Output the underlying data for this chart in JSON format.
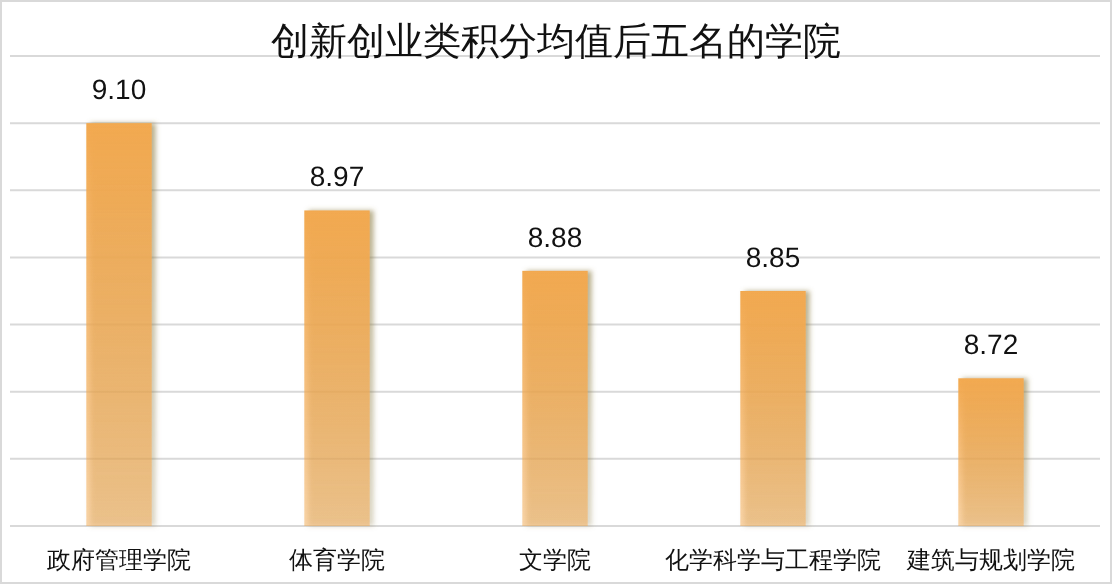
{
  "chart_data": {
    "type": "bar",
    "title": "创新创业类积分均值后五名的学院",
    "categories": [
      "政府管理学院",
      "体育学院",
      "文学院",
      "化学科学与工程学院",
      "建筑与规划学院"
    ],
    "values": [
      9.1,
      8.97,
      8.88,
      8.85,
      8.72
    ],
    "color": "#f2a950",
    "ylim": [
      8.5,
      9.2
    ],
    "yticks": [
      {
        "value": 8.5,
        "label": null
      },
      {
        "value": 8.6,
        "label": null
      },
      {
        "value": 8.7,
        "label": null
      },
      {
        "value": 8.8,
        "label": null
      },
      {
        "value": 8.9,
        "label": null
      },
      {
        "value": 9.0,
        "label": null
      },
      {
        "value": 9.1,
        "label": null
      },
      {
        "value": 9.2,
        "label": null
      }
    ],
    "value_labels": [
      "9.10",
      "8.97",
      "8.88",
      "8.85",
      "8.72"
    ],
    "tick_labels": "x",
    "grid": "y"
  }
}
